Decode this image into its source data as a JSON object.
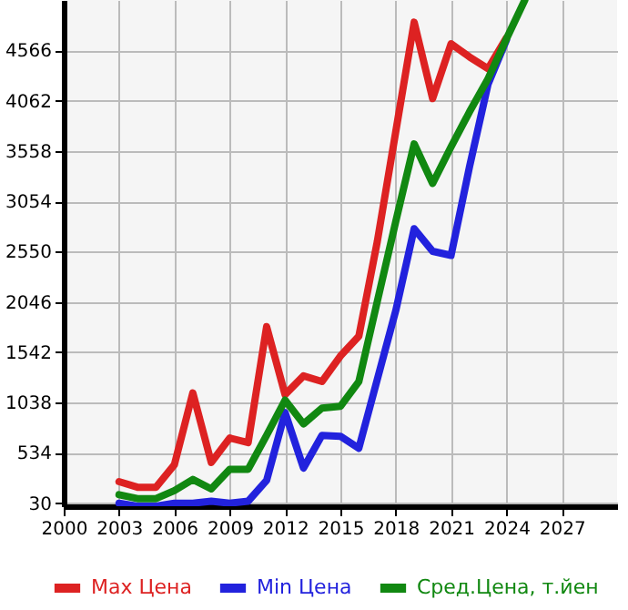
{
  "chart_data": {
    "type": "line",
    "x": [
      2003,
      2004,
      2005,
      2006,
      2007,
      2008,
      2009,
      2010,
      2011,
      2012,
      2013,
      2014,
      2015,
      2016,
      2017,
      2018,
      2019,
      2020,
      2021,
      2022,
      2023,
      2024,
      2025
    ],
    "series": [
      {
        "name": "Max Цена",
        "color": "#dd2222",
        "values": [
          246,
          190,
          190,
          416,
          1135,
          438,
          683,
          637,
          1798,
          1118,
          1305,
          1249,
          1504,
          1703,
          2650,
          3750,
          4848,
          4083,
          4632,
          4500,
          4382,
          4690,
          null
        ]
      },
      {
        "name": "Min Цена",
        "color": "#2222dd",
        "values": [
          30,
          0,
          0,
          30,
          30,
          50,
          30,
          50,
          258,
          938,
          382,
          710,
          700,
          581,
          1270,
          1958,
          2779,
          2553,
          2512,
          3400,
          4224,
          4670,
          null
        ]
      },
      {
        "name": "Сред.Цена, т.йен",
        "color": "#118811",
        "values": [
          115,
          76,
          76,
          156,
          268,
          173,
          370,
          370,
          710,
          1062,
          824,
          982,
          1000,
          1249,
          2050,
          2850,
          3629,
          3233,
          3600,
          3950,
          4280,
          4680,
          5070
        ]
      }
    ],
    "xlim": [
      2000,
      2030
    ],
    "xticks": [
      2000,
      2003,
      2006,
      2009,
      2012,
      2015,
      2018,
      2021,
      2024,
      2027
    ],
    "ylim": [
      0,
      5070
    ],
    "yticks": [
      30,
      534,
      1038,
      1542,
      2046,
      2550,
      3054,
      3558,
      4062,
      4566
    ],
    "grid": true,
    "legend": "bottom",
    "marker": "none",
    "line_style": "solid"
  }
}
